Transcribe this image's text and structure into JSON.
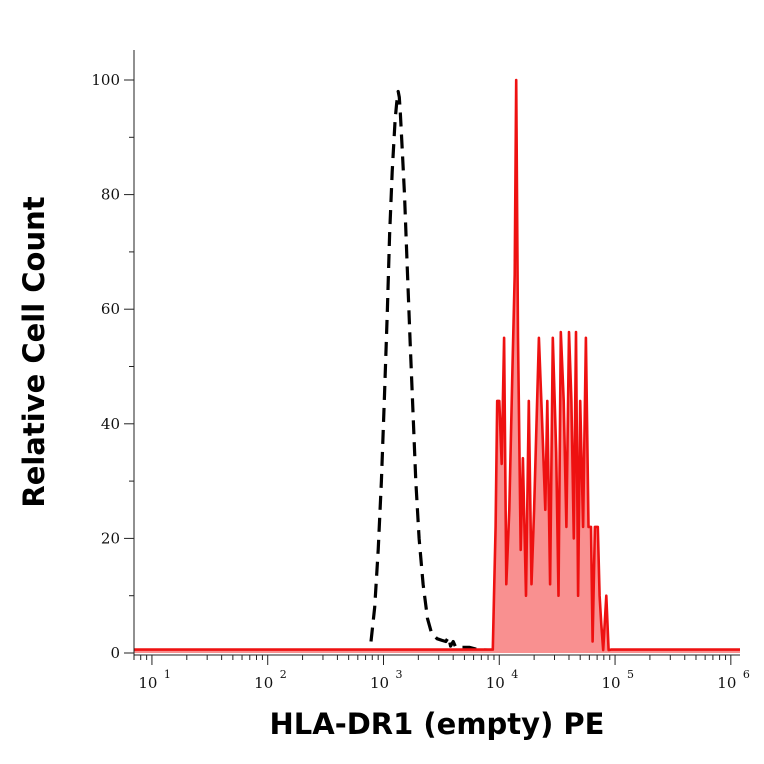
{
  "chart_data": {
    "type": "area",
    "xlabel": "HLA-DR1 (empty) PE",
    "ylabel": "Relative Cell Count",
    "x_scale": "log",
    "xlim": [
      7,
      1200000
    ],
    "ylim": [
      0,
      100
    ],
    "x_ticks": [
      {
        "base": "10",
        "exp": "1",
        "value": 10
      },
      {
        "base": "10",
        "exp": "2",
        "value": 100
      },
      {
        "base": "10",
        "exp": "3",
        "value": 1000
      },
      {
        "base": "10",
        "exp": "4",
        "value": 10000
      },
      {
        "base": "10",
        "exp": "5",
        "value": 100000
      },
      {
        "base": "10",
        "exp": "6",
        "value": 1000000
      }
    ],
    "y_ticks": [
      0,
      20,
      40,
      60,
      80,
      100
    ],
    "series": [
      {
        "style": "dashed",
        "color": "#000000",
        "fill": "none",
        "points": [
          [
            780,
            2
          ],
          [
            840,
            8
          ],
          [
            900,
            18
          ],
          [
            960,
            30
          ],
          [
            1020,
            45
          ],
          [
            1080,
            60
          ],
          [
            1130,
            73
          ],
          [
            1190,
            84
          ],
          [
            1260,
            93
          ],
          [
            1300,
            96
          ],
          [
            1340,
            98
          ],
          [
            1370,
            97
          ],
          [
            1400,
            94
          ],
          [
            1450,
            88
          ],
          [
            1520,
            80
          ],
          [
            1600,
            68
          ],
          [
            1700,
            54
          ],
          [
            1800,
            42
          ],
          [
            1900,
            30
          ],
          [
            2030,
            20
          ],
          [
            2200,
            12
          ],
          [
            2400,
            6
          ],
          [
            2600,
            3.5
          ],
          [
            2900,
            2.5
          ],
          [
            3200,
            2.2
          ],
          [
            3450,
            2
          ],
          [
            3650,
            2.8
          ],
          [
            3800,
            1.2
          ],
          [
            4000,
            2
          ],
          [
            4200,
            1
          ],
          [
            5500,
            1
          ],
          [
            6500,
            0.6
          ],
          [
            8000,
            0.5
          ],
          [
            20000,
            0.4
          ],
          [
            30000,
            0.3
          ]
        ]
      },
      {
        "style": "solid",
        "color": "#ee1111",
        "fill": "#f99090",
        "points": [
          [
            7,
            0.6
          ],
          [
            800,
            0.6
          ],
          [
            8800,
            0.6
          ],
          [
            9000,
            10
          ],
          [
            9300,
            22
          ],
          [
            9600,
            44
          ],
          [
            10000,
            44
          ],
          [
            10500,
            33
          ],
          [
            11000,
            55
          ],
          [
            11500,
            12
          ],
          [
            12200,
            25
          ],
          [
            13000,
            50
          ],
          [
            13600,
            66
          ],
          [
            14000,
            100
          ],
          [
            14500,
            55
          ],
          [
            15300,
            18
          ],
          [
            16000,
            34
          ],
          [
            17000,
            10
          ],
          [
            18000,
            44
          ],
          [
            19000,
            12
          ],
          [
            20000,
            25
          ],
          [
            22000,
            55
          ],
          [
            23500,
            40
          ],
          [
            25000,
            25
          ],
          [
            26000,
            44
          ],
          [
            27500,
            12
          ],
          [
            29000,
            55
          ],
          [
            31000,
            35
          ],
          [
            32500,
            10
          ],
          [
            34000,
            56
          ],
          [
            36000,
            44
          ],
          [
            38000,
            22
          ],
          [
            40000,
            56
          ],
          [
            42000,
            44
          ],
          [
            44000,
            20
          ],
          [
            46000,
            56
          ],
          [
            48000,
            10
          ],
          [
            50000,
            44
          ],
          [
            53000,
            22
          ],
          [
            56000,
            55
          ],
          [
            59000,
            22
          ],
          [
            62000,
            22
          ],
          [
            64000,
            2
          ],
          [
            67000,
            22
          ],
          [
            71000,
            22
          ],
          [
            73500,
            10
          ],
          [
            76000,
            5
          ],
          [
            79000,
            0.5
          ],
          [
            84000,
            10
          ],
          [
            88000,
            0.5
          ],
          [
            92000,
            0.6
          ],
          [
            1200000,
            0.6
          ]
        ]
      }
    ]
  }
}
